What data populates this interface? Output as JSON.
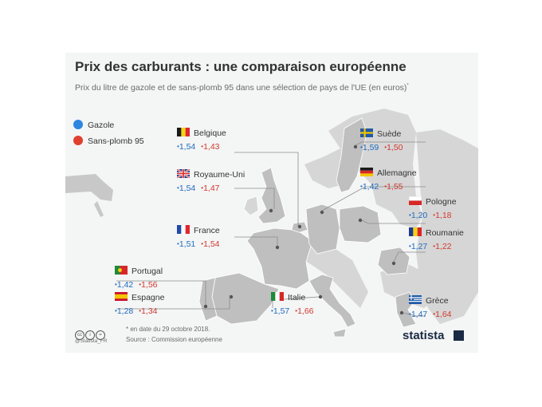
{
  "title": "Prix des carburants : une comparaison européenne",
  "subtitle": "Prix du litre de gazole et de sans-plomb 95 dans une sélection de pays de l'UE  (en euros)",
  "subtitle_marker": "*",
  "colors": {
    "diesel": "#1f6cc1",
    "sp95": "#d23a2e",
    "land_highlight": "#bdbdbd",
    "land": "#d3d3d3",
    "background": "#f4f5f5"
  },
  "legend": [
    {
      "label": "Gazole",
      "color": "#2d86e0"
    },
    {
      "label": "Sans-plomb 95",
      "color": "#e0402f"
    }
  ],
  "bullet": "•",
  "countries": [
    {
      "name": "Belgique",
      "flag": "flag-belgium",
      "diesel": "1,54",
      "sp95": "1,43"
    },
    {
      "name": "Royaume-Uni",
      "flag": "flag-uk",
      "diesel": "1,54",
      "sp95": "1,47"
    },
    {
      "name": "France",
      "flag": "flag-france",
      "diesel": "1,51",
      "sp95": "1,54"
    },
    {
      "name": "Portugal",
      "flag": "flag-portugal",
      "diesel": "1,42",
      "sp95": "1,56"
    },
    {
      "name": "Espagne",
      "flag": "flag-spain",
      "diesel": "1,28",
      "sp95": "1,34"
    },
    {
      "name": "Italie",
      "flag": "flag-italy",
      "diesel": "1,57",
      "sp95": "1,66"
    },
    {
      "name": "Suède",
      "flag": "flag-sweden",
      "diesel": "1,59",
      "sp95": "1,50"
    },
    {
      "name": "Allemagne",
      "flag": "flag-germany",
      "diesel": "1,42",
      "sp95": "1,55"
    },
    {
      "name": "Pologne",
      "flag": "flag-poland",
      "diesel": "1,20",
      "sp95": "1,18"
    },
    {
      "name": "Roumanie",
      "flag": "flag-romania",
      "diesel": "1,27",
      "sp95": "1,22"
    },
    {
      "name": "Grèce",
      "flag": "flag-greece",
      "diesel": "1,47",
      "sp95": "1,64"
    }
  ],
  "footnote": "* en date du 29 octobre 2018.",
  "source": "Source : Commission européenne",
  "handle": "@Statista_FR",
  "license_icons": [
    "cc",
    "i",
    "="
  ],
  "brand": "statista"
}
